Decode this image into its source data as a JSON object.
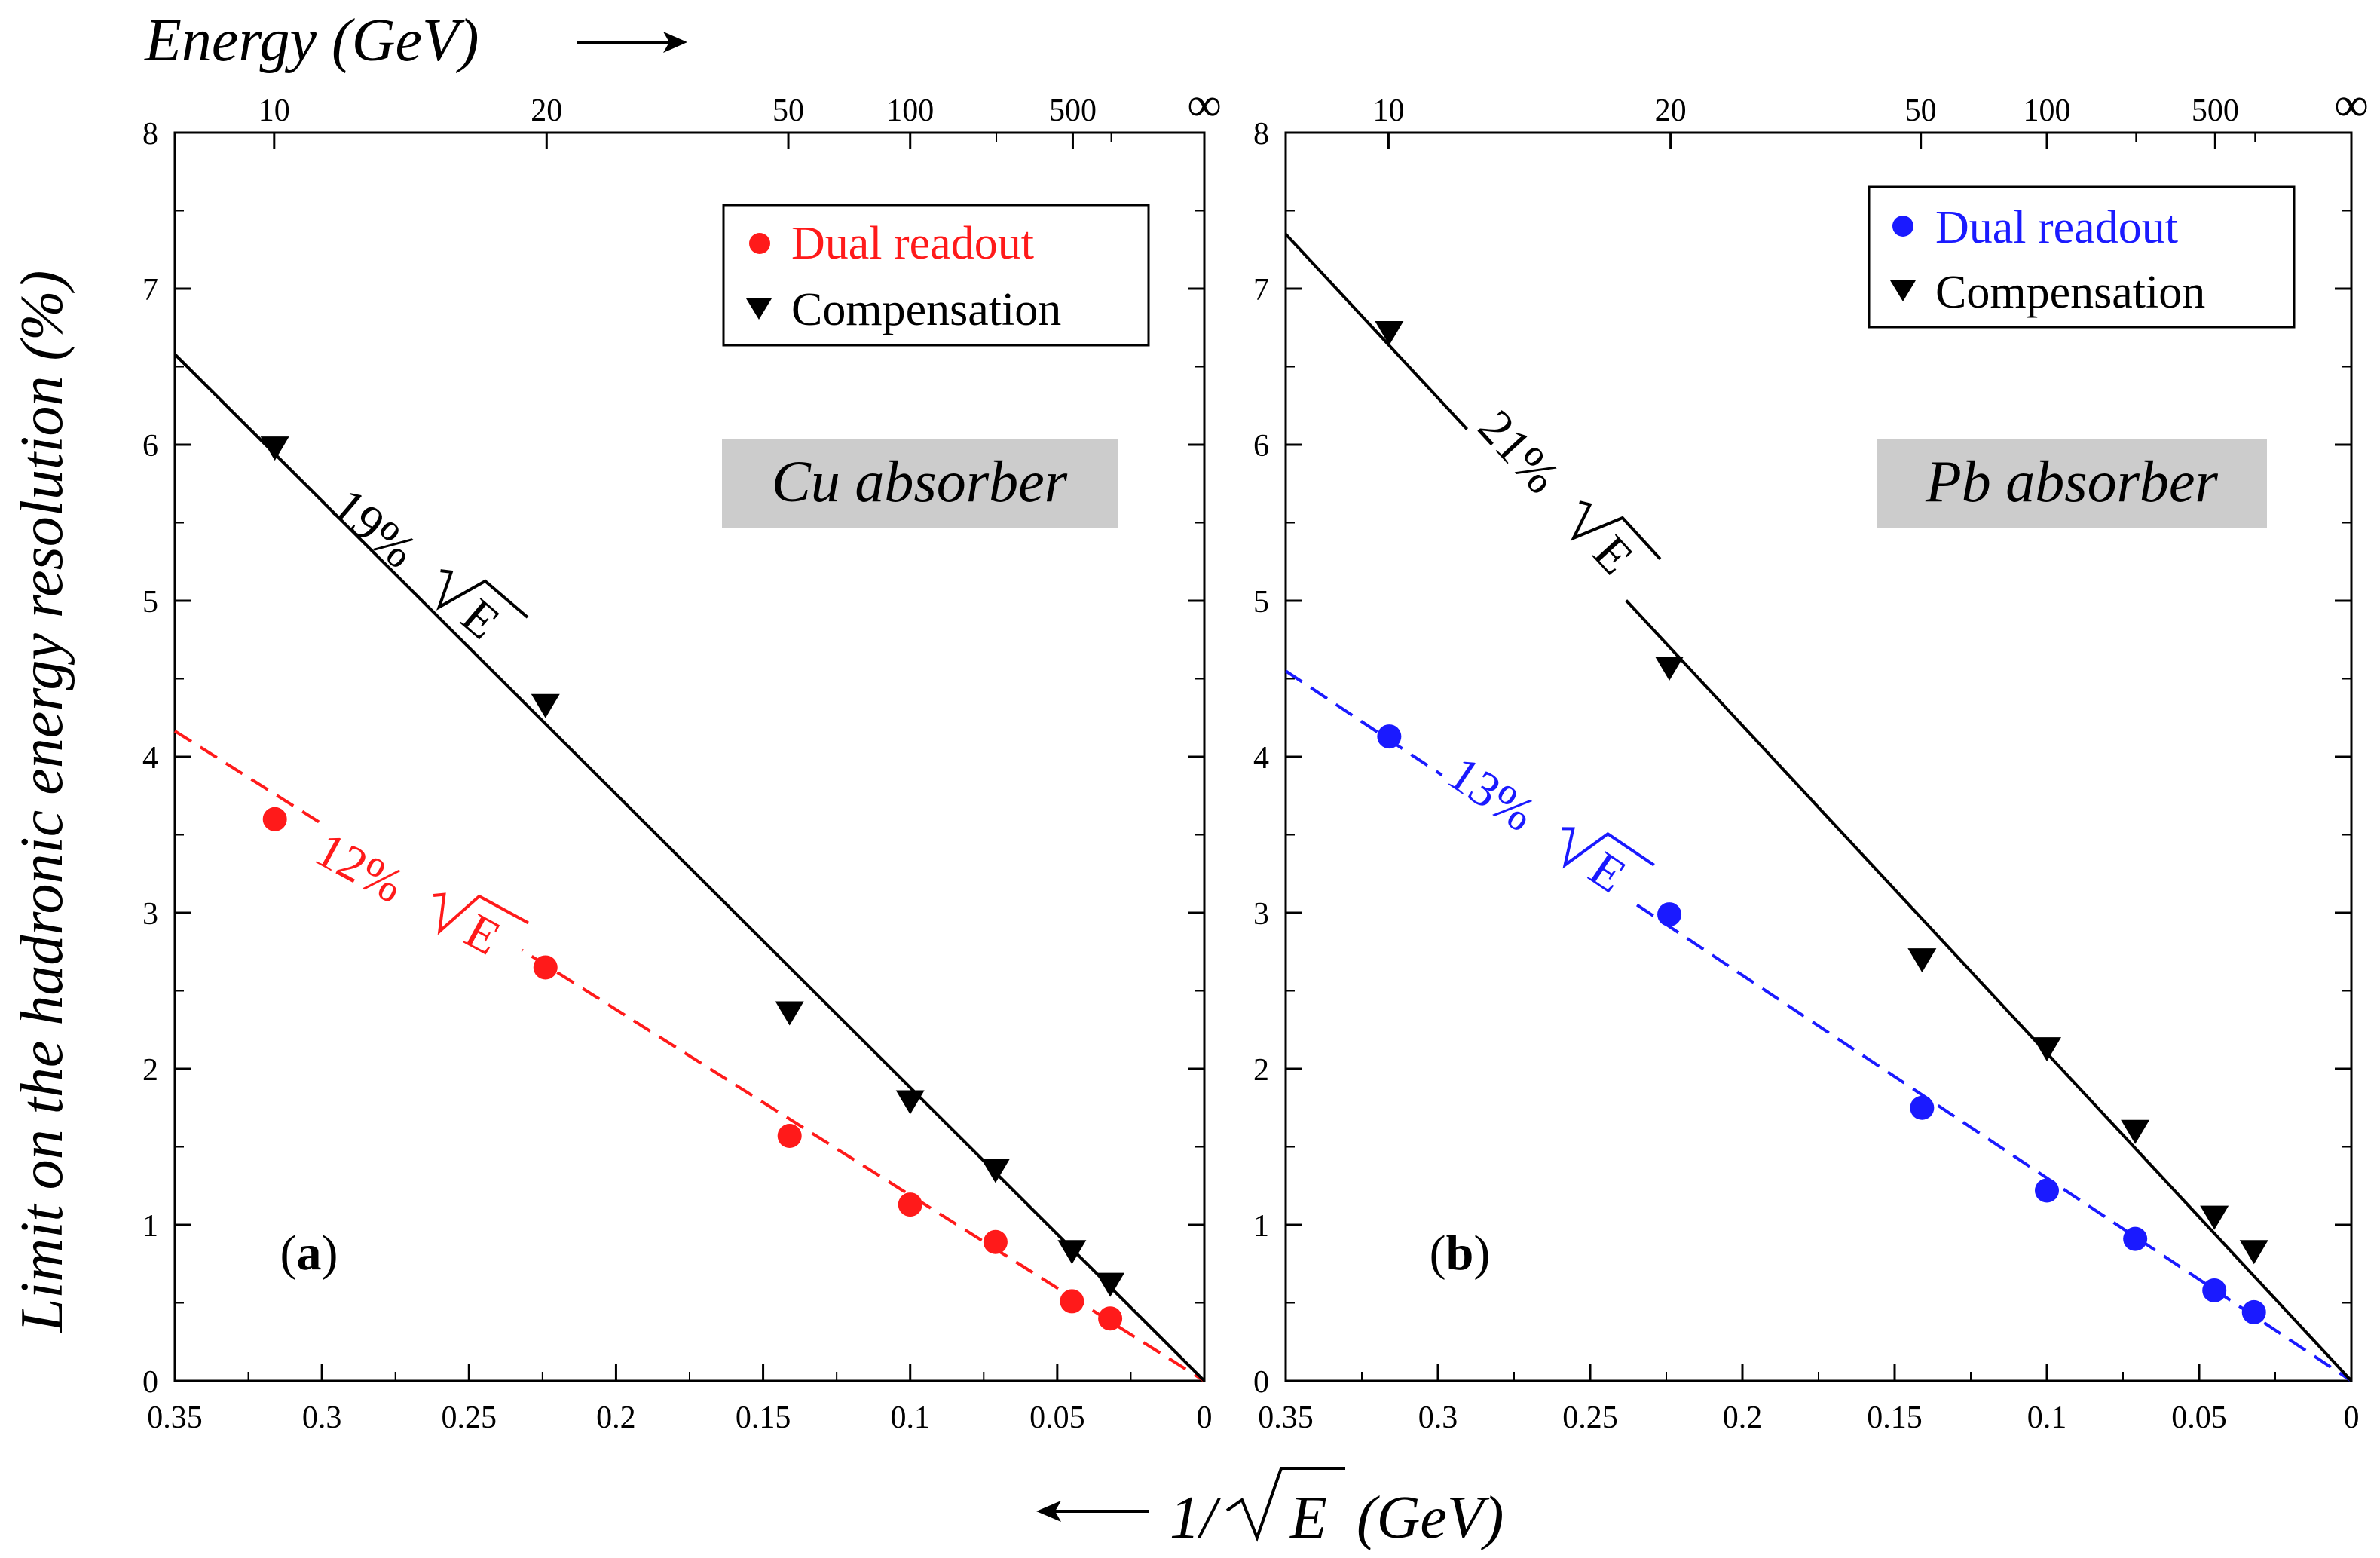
{
  "chart_data": [
    {
      "type": "scatter",
      "panel_label": "a",
      "absorber_label": "Cu absorber",
      "xlabel": "1/√E (GeV)",
      "xlabel_prefix": "1/",
      "xlabel_radicand": "E",
      "xlabel_unit": "(GeV)",
      "ylabel": "Limit on the hadronic energy resolution (%)",
      "top_axis_label": "Energy (GeV)",
      "xlim": [
        0.35,
        0
      ],
      "ylim": [
        0,
        8
      ],
      "x_ticks": [
        0.35,
        0.3,
        0.25,
        0.2,
        0.15,
        0.1,
        0.05,
        0
      ],
      "x_tick_labels": [
        "0.35",
        "0.3",
        "0.25",
        "0.2",
        "0.15",
        "0.1",
        "0.05",
        "0"
      ],
      "y_ticks": [
        0,
        1,
        2,
        3,
        4,
        5,
        6,
        7,
        8
      ],
      "y_tick_labels": [
        "0",
        "1",
        "2",
        "3",
        "4",
        "5",
        "6",
        "7",
        "8"
      ],
      "top_ticks": [
        {
          "label": "10",
          "energy": 10
        },
        {
          "label": "20",
          "energy": 20
        },
        {
          "label": "50",
          "energy": 50
        },
        {
          "label": "100",
          "energy": 100
        },
        {
          "label": "500",
          "energy": 500
        },
        {
          "label": "∞",
          "energy": null
        }
      ],
      "top_minor_energies": [
        200,
        1000
      ],
      "legend_position": "top-right",
      "series": [
        {
          "name": "Dual readout",
          "marker": "circle",
          "color": "#ff1a1a",
          "x": [
            0.316,
            0.224,
            0.141,
            0.1,
            0.071,
            0.045,
            0.032
          ],
          "y": [
            3.6,
            2.65,
            1.57,
            1.13,
            0.89,
            0.51,
            0.4
          ],
          "fit": {
            "label_value": "12%",
            "label_radicand": "E",
            "slope": 11.9,
            "style": "dashed",
            "x_from": 0.35,
            "x_to": 0
          }
        },
        {
          "name": "Compensation",
          "marker": "triangle-down",
          "color": "#000000",
          "x": [
            0.316,
            0.224,
            0.141,
            0.1,
            0.071,
            0.045,
            0.032
          ],
          "y": [
            5.98,
            4.33,
            2.36,
            1.79,
            1.35,
            0.83,
            0.62
          ],
          "fit": {
            "label_value": "19%",
            "label_radicand": "E",
            "slope": 18.8,
            "style": "solid",
            "x_from": 0.35,
            "x_to": 0
          }
        }
      ]
    },
    {
      "type": "scatter",
      "panel_label": "b",
      "absorber_label": "Pb absorber",
      "xlim": [
        0.35,
        0
      ],
      "ylim": [
        0,
        8
      ],
      "x_ticks": [
        0.35,
        0.3,
        0.25,
        0.2,
        0.15,
        0.1,
        0.05,
        0
      ],
      "x_tick_labels": [
        "0.35",
        "0.3",
        "0.25",
        "0.2",
        "0.15",
        "0.1",
        "0.05",
        "0"
      ],
      "y_ticks": [
        0,
        1,
        2,
        3,
        4,
        5,
        6,
        7,
        8
      ],
      "y_tick_labels": [
        "0",
        "1",
        "2",
        "3",
        "4",
        "5",
        "6",
        "7",
        "8"
      ],
      "top_ticks": [
        {
          "label": "10",
          "energy": 10
        },
        {
          "label": "20",
          "energy": 20
        },
        {
          "label": "50",
          "energy": 50
        },
        {
          "label": "100",
          "energy": 100
        },
        {
          "label": "500",
          "energy": 500
        },
        {
          "label": "∞",
          "energy": null
        }
      ],
      "top_minor_energies": [
        200,
        1000
      ],
      "legend_position": "top-right",
      "series": [
        {
          "name": "Dual readout",
          "marker": "circle",
          "color": "#1a1aff",
          "x": [
            0.316,
            0.224,
            0.141,
            0.1,
            0.071,
            0.045,
            0.032
          ],
          "y": [
            4.13,
            2.99,
            1.75,
            1.22,
            0.91,
            0.58,
            0.44
          ],
          "fit": {
            "label_value": "13%",
            "label_radicand": "E",
            "slope": 13.0,
            "style": "dashed",
            "x_from": 0.35,
            "x_to": 0
          }
        },
        {
          "name": "Compensation",
          "marker": "triangle-down",
          "color": "#000000",
          "x": [
            0.316,
            0.224,
            0.141,
            0.1,
            0.071,
            0.045,
            0.032
          ],
          "y": [
            6.72,
            4.57,
            2.7,
            2.13,
            1.6,
            1.05,
            0.83
          ],
          "fit": {
            "label_value": "21%",
            "label_radicand": "E",
            "slope": 21.0,
            "style": "solid",
            "x_from": 0.35,
            "x_to": 0
          }
        }
      ]
    }
  ]
}
